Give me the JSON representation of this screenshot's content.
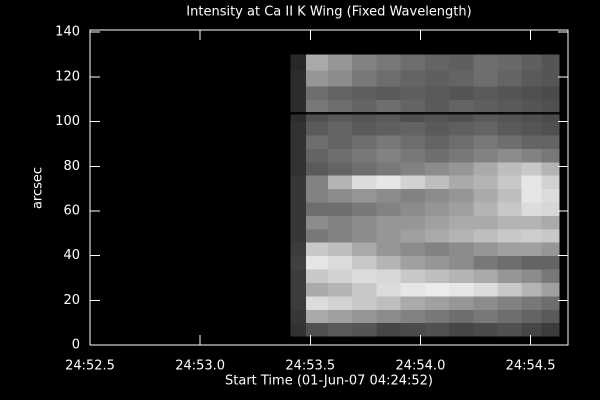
{
  "chart_data": {
    "type": "heatmap",
    "title": "Intensity at Ca II K Wing (Fixed Wavelength)",
    "x_label": "Start Time (01-Jun-07 04:24:52)",
    "y_label": "arcsec",
    "xlim": [
      1492.5,
      1494.67
    ],
    "ylim": [
      0,
      141
    ],
    "xticks": [
      {
        "value": 1492.5,
        "label": "24:52.5"
      },
      {
        "value": 1493.0,
        "label": "24:53.0"
      },
      {
        "value": 1493.5,
        "label": "24:53.5"
      },
      {
        "value": 1494.0,
        "label": "24:54.0"
      },
      {
        "value": 1494.5,
        "label": "24:54.5"
      }
    ],
    "yticks": [
      0,
      20,
      40,
      60,
      80,
      100,
      120,
      140
    ],
    "colormap": "gray",
    "xbins": [
      1493.41,
      1493.48,
      1493.58,
      1493.69,
      1493.8,
      1493.91,
      1494.02,
      1494.13,
      1494.24,
      1494.35,
      1494.46,
      1494.55,
      1494.63
    ],
    "ybins": [
      4,
      10,
      16,
      22,
      28,
      34,
      40,
      46,
      52,
      58,
      64,
      70,
      76,
      82,
      88,
      94,
      100,
      103.5,
      104.5,
      110,
      116,
      123,
      130
    ],
    "z": [
      [
        50,
        80,
        90,
        85,
        70,
        75,
        80,
        70,
        75,
        80,
        70,
        60
      ],
      [
        55,
        170,
        160,
        150,
        140,
        130,
        120,
        110,
        120,
        110,
        100,
        90
      ],
      [
        60,
        220,
        210,
        200,
        190,
        170,
        160,
        150,
        140,
        130,
        120,
        110
      ],
      [
        60,
        170,
        180,
        200,
        220,
        230,
        235,
        230,
        220,
        200,
        180,
        160
      ],
      [
        60,
        200,
        210,
        220,
        215,
        200,
        190,
        180,
        170,
        150,
        140,
        120
      ],
      [
        65,
        230,
        220,
        200,
        180,
        160,
        150,
        140,
        120,
        110,
        100,
        100
      ],
      [
        60,
        200,
        190,
        170,
        150,
        140,
        130,
        140,
        150,
        160,
        160,
        150
      ],
      [
        55,
        120,
        130,
        140,
        150,
        160,
        170,
        180,
        190,
        200,
        205,
        200
      ],
      [
        55,
        140,
        130,
        140,
        150,
        150,
        160,
        170,
        170,
        180,
        180,
        170
      ],
      [
        55,
        110,
        110,
        120,
        130,
        140,
        150,
        160,
        180,
        200,
        220,
        215
      ],
      [
        55,
        130,
        140,
        150,
        140,
        130,
        140,
        150,
        170,
        190,
        230,
        220
      ],
      [
        55,
        130,
        180,
        220,
        230,
        210,
        190,
        170,
        180,
        200,
        230,
        210
      ],
      [
        50,
        90,
        100,
        110,
        120,
        130,
        140,
        150,
        170,
        190,
        200,
        180
      ],
      [
        50,
        100,
        110,
        120,
        130,
        120,
        110,
        120,
        130,
        140,
        130,
        120
      ],
      [
        50,
        110,
        100,
        110,
        120,
        110,
        100,
        110,
        120,
        110,
        100,
        100
      ],
      [
        50,
        90,
        100,
        90,
        95,
        100,
        90,
        95,
        100,
        90,
        85,
        80
      ],
      [
        45,
        80,
        90,
        85,
        90,
        80,
        85,
        80,
        90,
        85,
        80,
        75
      ],
      [
        5,
        10,
        10,
        10,
        10,
        10,
        10,
        10,
        10,
        10,
        10,
        10
      ],
      [
        45,
        120,
        110,
        100,
        110,
        100,
        90,
        100,
        95,
        90,
        85,
        80
      ],
      [
        45,
        110,
        100,
        95,
        90,
        95,
        90,
        85,
        90,
        85,
        80,
        75
      ],
      [
        45,
        150,
        140,
        120,
        110,
        100,
        95,
        100,
        110,
        100,
        90,
        85
      ],
      [
        40,
        170,
        150,
        130,
        120,
        110,
        100,
        95,
        110,
        105,
        95,
        85
      ]
    ]
  }
}
